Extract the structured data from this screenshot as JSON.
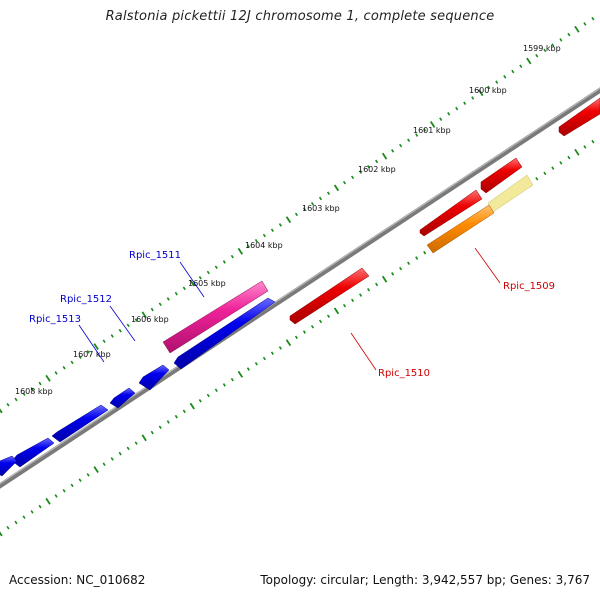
{
  "title": "Ralstonia pickettii 12J chromosome 1, complete sequence",
  "accession": "Accession: NC_010682",
  "topology": "Topology: circular; Length: 3,942,557 bp; Genes: 3,767",
  "colors": {
    "backbone": "#7a7a7a",
    "tick": "#1a8a1a",
    "minus_strand_gene": "#0000ee",
    "plus_strand_gene": "#ee0000",
    "highlight_pink": "#ee2299",
    "highlight_orange": "#ff8c00",
    "highlight_pale_yellow": "#f2ea9a",
    "label_blue": "#0000cc",
    "label_red": "#cc0000"
  },
  "kbp_labels": [
    "1599 kbp",
    "1600 kbp",
    "1601 kbp",
    "1602 kbp",
    "1603 kbp",
    "1604 kbp",
    "1605 kbp",
    "1606 kbp",
    "1607 kbp",
    "1608 kbp"
  ],
  "gene_labels": [
    "Rpic_1511",
    "Rpic_1512",
    "Rpic_1513",
    "Rpic_1509",
    "Rpic_1510"
  ]
}
